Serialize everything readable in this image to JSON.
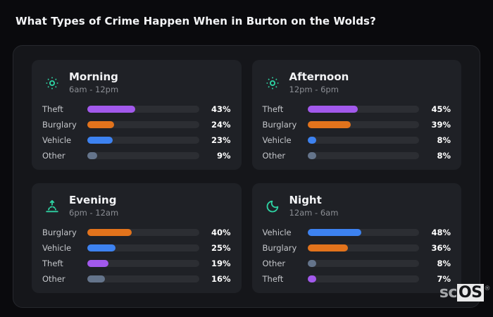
{
  "page_title": "What Types of Crime Happen When in Burton on the Wolds?",
  "watermark": {
    "prefix": "sc",
    "mark": "OS",
    "registered": "®"
  },
  "colors": {
    "theft": "#a259ec",
    "burglary": "#e2731c",
    "vehicle": "#3d82f0",
    "other": "#64748b",
    "icon_accent": "#2ed3a3",
    "bar_track": "#2c2e33"
  },
  "chart_data": [
    {
      "type": "bar",
      "title": "Morning",
      "subtitle": "6am - 12pm",
      "icon": "sun-icon",
      "unit": "%",
      "xlim": [
        0,
        100
      ],
      "categories": [
        "Theft",
        "Burglary",
        "Vehicle",
        "Other"
      ],
      "values": [
        43,
        24,
        23,
        9
      ]
    },
    {
      "type": "bar",
      "title": "Afternoon",
      "subtitle": "12pm - 6pm",
      "icon": "sun-icon",
      "unit": "%",
      "xlim": [
        0,
        100
      ],
      "categories": [
        "Theft",
        "Burglary",
        "Vehicle",
        "Other"
      ],
      "values": [
        45,
        39,
        8,
        8
      ]
    },
    {
      "type": "bar",
      "title": "Evening",
      "subtitle": "6pm - 12am",
      "icon": "sunset-icon",
      "unit": "%",
      "xlim": [
        0,
        100
      ],
      "categories": [
        "Burglary",
        "Vehicle",
        "Theft",
        "Other"
      ],
      "values": [
        40,
        25,
        19,
        16
      ]
    },
    {
      "type": "bar",
      "title": "Night",
      "subtitle": "12am - 6am",
      "icon": "moon-icon",
      "unit": "%",
      "xlim": [
        0,
        100
      ],
      "categories": [
        "Vehicle",
        "Burglary",
        "Other",
        "Theft"
      ],
      "values": [
        48,
        36,
        8,
        7
      ]
    }
  ]
}
